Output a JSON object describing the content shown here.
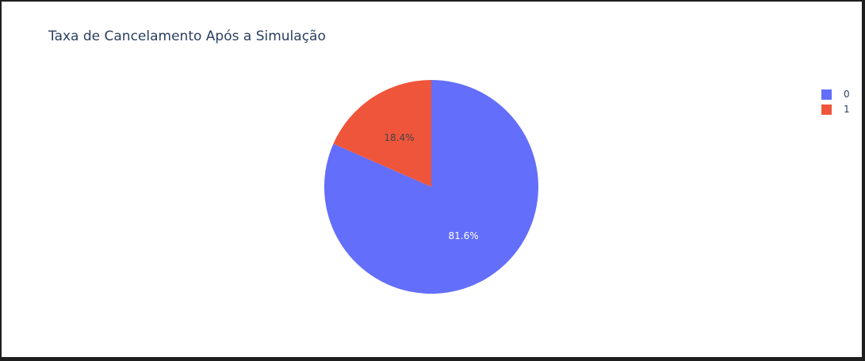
{
  "chart_data": {
    "type": "pie",
    "title": "Taxa de Cancelamento Após a Simulação",
    "categories": [
      "0",
      "1"
    ],
    "values": [
      81.6,
      18.4
    ],
    "slice_labels": [
      "81.6%",
      "18.4%"
    ],
    "colors": [
      "#636efa",
      "#ef553b"
    ],
    "legend_position": "top-right",
    "start_angle_deg": 90,
    "direction": "clockwise",
    "label_colors": [
      "#ffffff",
      "#444444"
    ]
  },
  "legend": {
    "items": [
      {
        "label": "0",
        "color": "#636efa"
      },
      {
        "label": "1",
        "color": "#ef553b"
      }
    ]
  }
}
